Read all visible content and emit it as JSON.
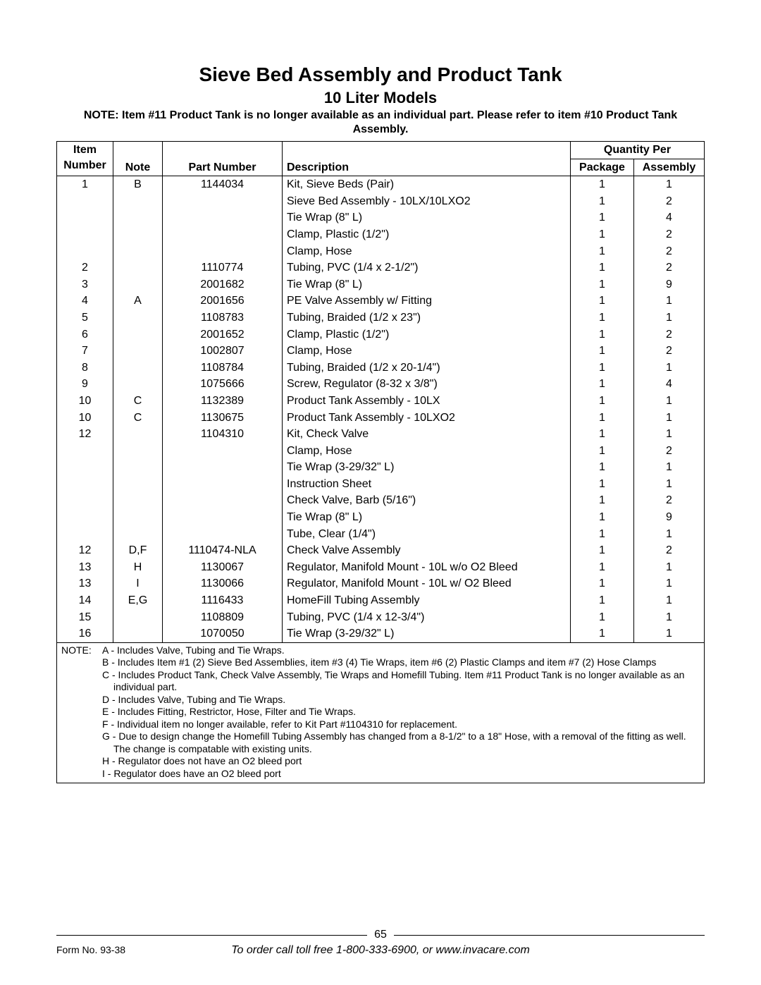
{
  "title": "Sieve Bed Assembly and Product Tank",
  "subtitle": "10 Liter Models",
  "top_note": "NOTE: Item #11 Product Tank is no longer available as an individual part. Please refer to item #10 Product Tank Assembly.",
  "columns": {
    "item": "Item Number",
    "note": "Note",
    "part": "Part Number",
    "desc": "Description",
    "qty_group": "Quantity Per",
    "pkg": "Package",
    "asm": "Assembly"
  },
  "rows": [
    {
      "item": "1",
      "note": "B",
      "part": "1144034",
      "desc": "Kit, Sieve Beds (Pair)",
      "pkg": "1",
      "asm": "1"
    },
    {
      "item": "",
      "note": "",
      "part": "",
      "desc": "Sieve Bed Assembly - 10LX/10LXO2",
      "pkg": "1",
      "asm": "2"
    },
    {
      "item": "",
      "note": "",
      "part": "",
      "desc": "Tie Wrap (8\" L)",
      "pkg": "1",
      "asm": "4"
    },
    {
      "item": "",
      "note": "",
      "part": "",
      "desc": "Clamp, Plastic (1/2\")",
      "pkg": "1",
      "asm": "2"
    },
    {
      "item": "",
      "note": "",
      "part": "",
      "desc": "Clamp, Hose",
      "pkg": "1",
      "asm": "2"
    },
    {
      "item": "2",
      "note": "",
      "part": "1110774",
      "desc": "Tubing, PVC (1/4 x 2-1/2\")",
      "pkg": "1",
      "asm": "2"
    },
    {
      "item": "3",
      "note": "",
      "part": "2001682",
      "desc": "Tie Wrap (8\" L)",
      "pkg": "1",
      "asm": "9"
    },
    {
      "item": "4",
      "note": "A",
      "part": "2001656",
      "desc": "PE Valve Assembly w/ Fitting",
      "pkg": "1",
      "asm": "1"
    },
    {
      "item": "5",
      "note": "",
      "part": "1108783",
      "desc": "Tubing, Braided (1/2 x 23\")",
      "pkg": "1",
      "asm": "1"
    },
    {
      "item": "6",
      "note": "",
      "part": "2001652",
      "desc": "Clamp, Plastic (1/2\")",
      "pkg": "1",
      "asm": "2"
    },
    {
      "item": "7",
      "note": "",
      "part": "1002807",
      "desc": "Clamp, Hose",
      "pkg": "1",
      "asm": "2"
    },
    {
      "item": "8",
      "note": "",
      "part": "1108784",
      "desc": "Tubing, Braided (1/2 x 20-1/4\")",
      "pkg": "1",
      "asm": "1"
    },
    {
      "item": "9",
      "note": "",
      "part": "1075666",
      "desc": "Screw, Regulator (8-32 x 3/8\")",
      "pkg": "1",
      "asm": "4"
    },
    {
      "item": "10",
      "note": "C",
      "part": "1132389",
      "desc": "Product Tank Assembly - 10LX",
      "pkg": "1",
      "asm": "1"
    },
    {
      "item": "10",
      "note": "C",
      "part": "1130675",
      "desc": "Product Tank Assembly - 10LXO2",
      "pkg": "1",
      "asm": "1"
    },
    {
      "item": "12",
      "note": "",
      "part": "1104310",
      "desc": "Kit, Check Valve",
      "pkg": "1",
      "asm": "1"
    },
    {
      "item": "",
      "note": "",
      "part": "",
      "desc": "Clamp, Hose",
      "pkg": "1",
      "asm": "2"
    },
    {
      "item": "",
      "note": "",
      "part": "",
      "desc": "Tie Wrap (3-29/32\" L)",
      "pkg": "1",
      "asm": "1"
    },
    {
      "item": "",
      "note": "",
      "part": "",
      "desc": "Instruction Sheet",
      "pkg": "1",
      "asm": "1"
    },
    {
      "item": "",
      "note": "",
      "part": "",
      "desc": "Check Valve, Barb (5/16\")",
      "pkg": "1",
      "asm": "2"
    },
    {
      "item": "",
      "note": "",
      "part": "",
      "desc": "Tie Wrap (8\" L)",
      "pkg": "1",
      "asm": "9"
    },
    {
      "item": "",
      "note": "",
      "part": "",
      "desc": "Tube, Clear (1/4\")",
      "pkg": "1",
      "asm": "1"
    },
    {
      "item": "12",
      "note": "D,F",
      "part": "1110474-NLA",
      "desc": "Check Valve Assembly",
      "pkg": "1",
      "asm": "2"
    },
    {
      "item": "13",
      "note": "H",
      "part": "1130067",
      "desc": "Regulator, Manifold Mount - 10L w/o O2 Bleed",
      "pkg": "1",
      "asm": "1"
    },
    {
      "item": "13",
      "note": "I",
      "part": "1130066",
      "desc": "Regulator, Manifold Mount - 10L w/ O2 Bleed",
      "pkg": "1",
      "asm": "1"
    },
    {
      "item": "14",
      "note": "E,G",
      "part": "1116433",
      "desc": "HomeFill Tubing Assembly",
      "pkg": "1",
      "asm": "1"
    },
    {
      "item": "15",
      "note": "",
      "part": "1108809",
      "desc": "Tubing, PVC (1/4 x 12-3/4\")",
      "pkg": "1",
      "asm": "1"
    },
    {
      "item": "16",
      "note": "",
      "part": "1070050",
      "desc": "Tie Wrap (3-29/32\" L)",
      "pkg": "1",
      "asm": "1"
    }
  ],
  "footnotes_label": "NOTE:",
  "footnotes": [
    "A - Includes Valve, Tubing and Tie Wraps.",
    "B - Includes Item #1 (2) Sieve Bed Assemblies, item #3 (4) Tie Wraps, item #6 (2) Plastic Clamps and item #7 (2) Hose Clamps",
    "C - Includes Product Tank, Check Valve Assembly, Tie Wraps and Homefill Tubing. Item #11 Product Tank is no longer available as an individual part.",
    "D - Includes Valve, Tubing and Tie Wraps.",
    "E - Includes Fitting, Restrictor, Hose, Filter and Tie Wraps.",
    "F - Individual item no longer available, refer to Kit Part #1104310 for replacement.",
    "G - Due to design change the Homefill Tubing Assembly has changed from a 8-1/2\" to a 18\" Hose, with a removal of the fitting as well. The change is compatable with existing units.",
    "H - Regulator does not have an O2 bleed port",
    "I - Regulator does have an O2 bleed port"
  ],
  "page_number": "65",
  "form_no": "Form No. 93-38",
  "order_line": "To order call toll free 1-800-333-6900, or www.invacare.com"
}
